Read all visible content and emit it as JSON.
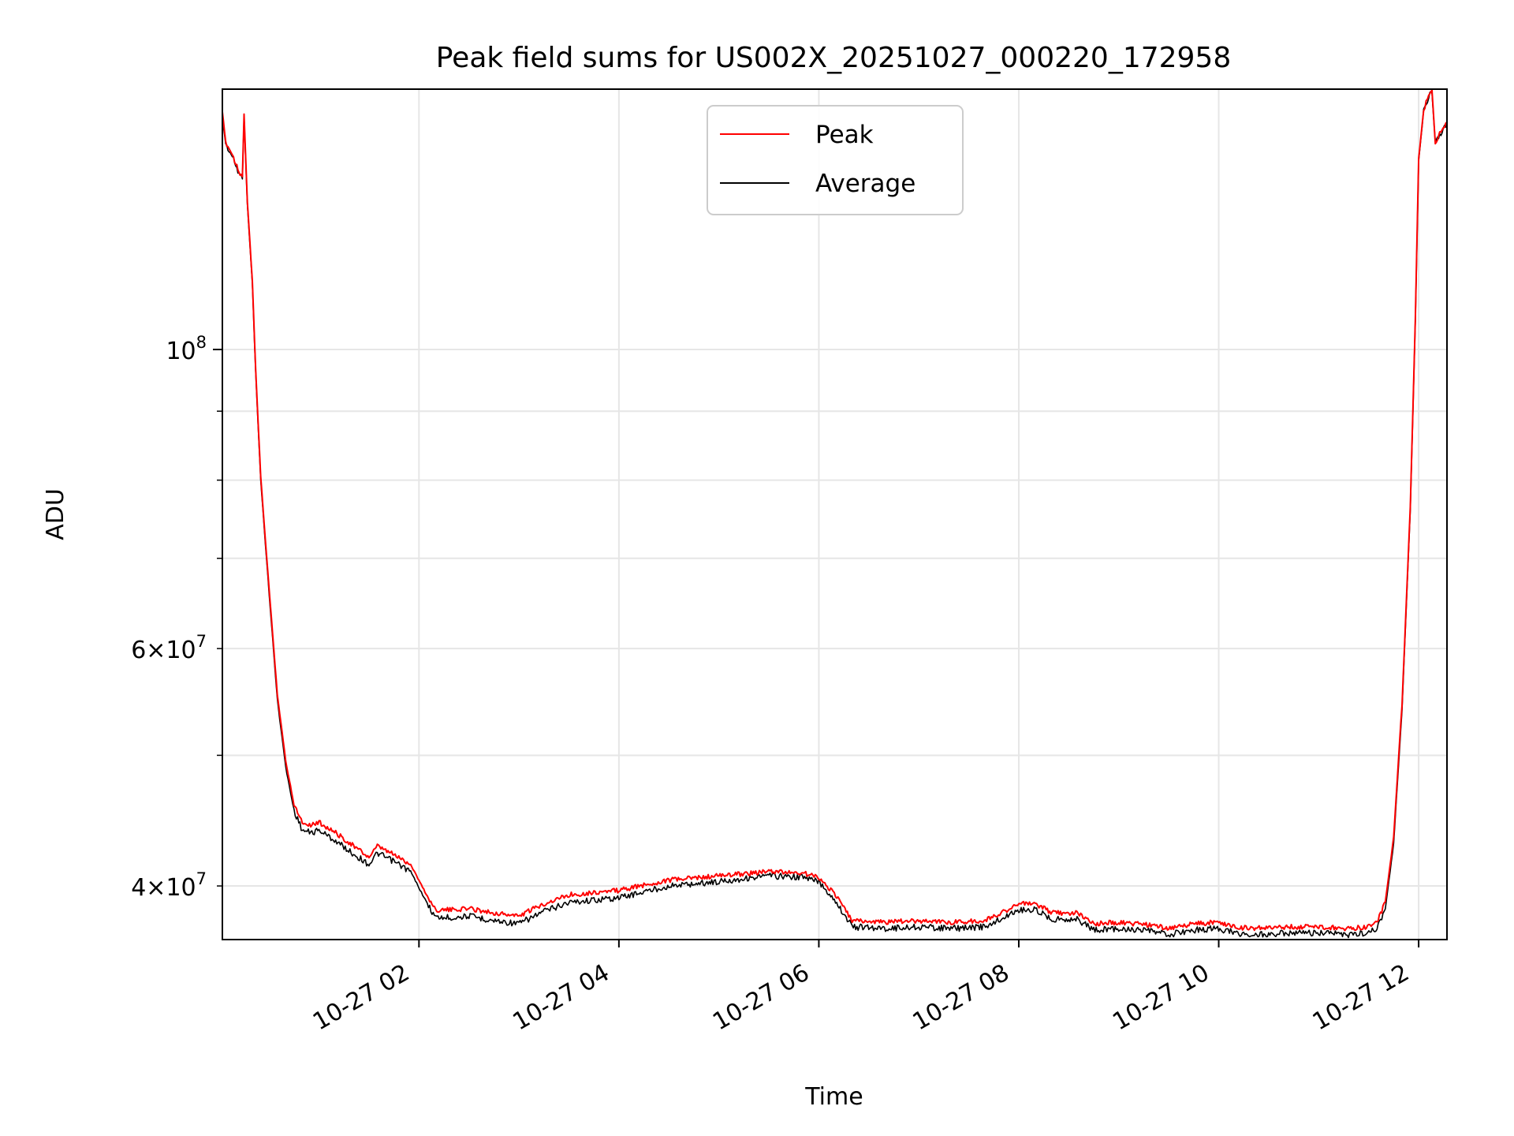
{
  "chart_data": {
    "type": "line",
    "title": "Peak field sums for US002X_20251027_000220_172958",
    "xlabel": "Time",
    "ylabel": "ADU",
    "y_scale": "log",
    "grid": true,
    "legend_position": "top-center",
    "xlim": [
      "10-27 00:02",
      "10-27 12:17"
    ],
    "ylim": [
      36500000,
      156000000
    ],
    "x_ticks": [
      {
        "label": "10-27 02",
        "value": "10-27 02:00"
      },
      {
        "label": "10-27 04",
        "value": "10-27 04:00"
      },
      {
        "label": "10-27 06",
        "value": "10-27 06:00"
      },
      {
        "label": "10-27 08",
        "value": "10-27 08:00"
      },
      {
        "label": "10-27 10",
        "value": "10-27 10:00"
      },
      {
        "label": "10-27 12",
        "value": "10-27 12:00"
      }
    ],
    "y_major_ticks": [
      {
        "base": "10",
        "exp": "8",
        "value": 100000000
      }
    ],
    "y_minor_ticks": [
      {
        "mant": "4",
        "exp": "7",
        "value": 40000000
      },
      {
        "mant": "5",
        "exp": "7",
        "value": 50000000,
        "labeled": false
      },
      {
        "mant": "6",
        "exp": "7",
        "value": 60000000
      },
      {
        "mant": "7",
        "exp": "7",
        "value": 70000000,
        "labeled": false
      },
      {
        "mant": "8",
        "exp": "7",
        "value": 80000000,
        "labeled": false
      },
      {
        "mant": "9",
        "exp": "7",
        "value": 90000000,
        "labeled": false
      }
    ],
    "series": [
      {
        "name": "Average",
        "color": "#000000",
        "x": [
          "10-27 00:02",
          "10-27 00:04",
          "10-27 00:08",
          "10-27 00:12",
          "10-27 00:14",
          "10-27 00:15",
          "10-27 00:17",
          "10-27 00:20",
          "10-27 00:22",
          "10-27 00:25",
          "10-27 00:30",
          "10-27 00:35",
          "10-27 00:40",
          "10-27 00:45",
          "10-27 00:50",
          "10-27 00:55",
          "10-27 01:00",
          "10-27 01:10",
          "10-27 01:20",
          "10-27 01:30",
          "10-27 01:35",
          "10-27 01:45",
          "10-27 01:55",
          "10-27 02:05",
          "10-27 02:10",
          "10-27 02:20",
          "10-27 02:30",
          "10-27 02:45",
          "10-27 03:00",
          "10-27 03:15",
          "10-27 03:30",
          "10-27 04:00",
          "10-27 04:30",
          "10-27 05:00",
          "10-27 05:30",
          "10-27 05:50",
          "10-27 06:00",
          "10-27 06:10",
          "10-27 06:20",
          "10-27 06:40",
          "10-27 07:00",
          "10-27 07:20",
          "10-27 07:40",
          "10-27 08:00",
          "10-27 08:10",
          "10-27 08:20",
          "10-27 08:35",
          "10-27 08:45",
          "10-27 09:00",
          "10-27 09:20",
          "10-27 09:30",
          "10-27 09:45",
          "10-27 10:00",
          "10-27 10:10",
          "10-27 10:20",
          "10-27 10:40",
          "10-27 11:00",
          "10-27 11:20",
          "10-27 11:28",
          "10-27 11:35",
          "10-27 11:40",
          "10-27 11:45",
          "10-27 11:50",
          "10-27 11:55",
          "10-27 11:58",
          "10-27 12:00",
          "10-27 12:03",
          "10-27 12:06",
          "10-27 12:08",
          "10-27 12:10",
          "10-27 12:14",
          "10-27 12:17"
        ],
        "y": [
          149000000,
          142000000,
          139000000,
          135000000,
          134000000,
          149000000,
          128000000,
          112000000,
          96000000,
          80000000,
          66000000,
          55000000,
          49000000,
          45500000,
          44000000,
          43800000,
          44000000,
          43200000,
          42300000,
          41500000,
          42300000,
          41700000,
          41000000,
          38800000,
          37900000,
          37900000,
          38000000,
          37700000,
          37500000,
          38300000,
          38900000,
          39200000,
          40000000,
          40300000,
          40700000,
          40600000,
          40300000,
          39000000,
          37300000,
          37200000,
          37300000,
          37200000,
          37300000,
          38400000,
          38400000,
          37800000,
          37800000,
          37100000,
          37200000,
          37000000,
          36800000,
          37100000,
          37200000,
          36900000,
          36800000,
          36900000,
          36900000,
          36800000,
          36900000,
          37200000,
          38500000,
          43000000,
          54000000,
          76000000,
          105000000,
          138000000,
          150000000,
          154000000,
          155000000,
          142000000,
          145000000,
          147000000
        ]
      },
      {
        "name": "Peak",
        "color": "#ff0000",
        "x": [
          "10-27 00:02",
          "10-27 00:04",
          "10-27 00:08",
          "10-27 00:12",
          "10-27 00:14",
          "10-27 00:15",
          "10-27 00:17",
          "10-27 00:20",
          "10-27 00:22",
          "10-27 00:25",
          "10-27 00:30",
          "10-27 00:35",
          "10-27 00:40",
          "10-27 00:45",
          "10-27 00:50",
          "10-27 00:55",
          "10-27 01:00",
          "10-27 01:10",
          "10-27 01:20",
          "10-27 01:30",
          "10-27 01:35",
          "10-27 01:45",
          "10-27 01:55",
          "10-27 02:05",
          "10-27 02:10",
          "10-27 02:20",
          "10-27 02:30",
          "10-27 02:45",
          "10-27 03:00",
          "10-27 03:15",
          "10-27 03:30",
          "10-27 04:00",
          "10-27 04:30",
          "10-27 05:00",
          "10-27 05:30",
          "10-27 05:50",
          "10-27 06:00",
          "10-27 06:10",
          "10-27 06:20",
          "10-27 06:40",
          "10-27 07:00",
          "10-27 07:20",
          "10-27 07:40",
          "10-27 08:00",
          "10-27 08:10",
          "10-27 08:20",
          "10-27 08:35",
          "10-27 08:45",
          "10-27 09:00",
          "10-27 09:20",
          "10-27 09:30",
          "10-27 09:45",
          "10-27 10:00",
          "10-27 10:10",
          "10-27 10:20",
          "10-27 10:40",
          "10-27 11:00",
          "10-27 11:20",
          "10-27 11:28",
          "10-27 11:35",
          "10-27 11:40",
          "10-27 11:45",
          "10-27 11:50",
          "10-27 11:55",
          "10-27 11:58",
          "10-27 12:00",
          "10-27 12:03",
          "10-27 12:06",
          "10-27 12:08",
          "10-27 12:10",
          "10-27 12:14",
          "10-27 12:17"
        ],
        "y": [
          149500000,
          142500000,
          139500000,
          135500000,
          134500000,
          149500000,
          128500000,
          112500000,
          96500000,
          80500000,
          66500000,
          55500000,
          49500000,
          46000000,
          44600000,
          44400000,
          44600000,
          43800000,
          42900000,
          42000000,
          42800000,
          42200000,
          41500000,
          39300000,
          38400000,
          38400000,
          38500000,
          38200000,
          38000000,
          38800000,
          39400000,
          39700000,
          40400000,
          40700000,
          41000000,
          40900000,
          40600000,
          39400000,
          37700000,
          37600000,
          37700000,
          37600000,
          37700000,
          38800000,
          38800000,
          38200000,
          38200000,
          37500000,
          37600000,
          37400000,
          37200000,
          37500000,
          37600000,
          37300000,
          37200000,
          37300000,
          37300000,
          37200000,
          37300000,
          37600000,
          38900000,
          43500000,
          54500000,
          76500000,
          105500000,
          138500000,
          150500000,
          154500000,
          155500000,
          142500000,
          145500000,
          147500000
        ]
      }
    ],
    "legend": [
      {
        "name": "Peak",
        "color": "#ff0000"
      },
      {
        "name": "Average",
        "color": "#000000"
      }
    ]
  }
}
